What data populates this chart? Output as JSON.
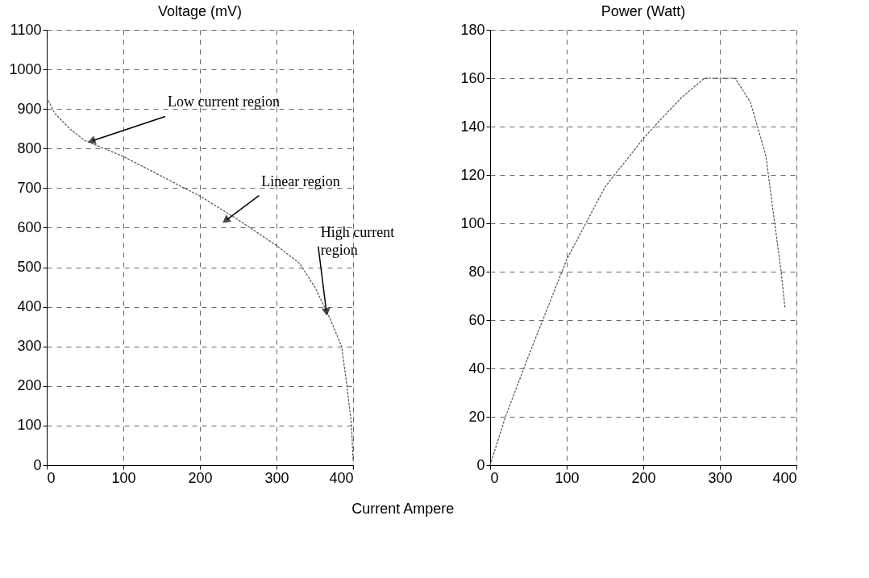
{
  "chart_data": [
    {
      "type": "line",
      "title": "Voltage (mV)",
      "xlabel": "Current Ampere",
      "x": [
        0,
        10,
        30,
        50,
        100,
        150,
        200,
        250,
        300,
        330,
        350,
        370,
        385,
        392,
        398,
        400
      ],
      "series": [
        {
          "color": "#555555",
          "values": [
            930,
            890,
            850,
            820,
            780,
            730,
            680,
            620,
            555,
            510,
            450,
            370,
            300,
            200,
            100,
            10
          ]
        }
      ],
      "xlim": [
        0,
        400
      ],
      "xticks": [
        0,
        100,
        200,
        300,
        400
      ],
      "ylim": [
        0,
        1100
      ],
      "yticks": [
        0,
        100,
        200,
        300,
        400,
        500,
        600,
        700,
        800,
        900,
        1000,
        1100
      ],
      "grid": true,
      "line_style": "dashed",
      "annotations": [
        {
          "text": "Low current region",
          "x": 60,
          "y": 820
        },
        {
          "text": "Linear region",
          "x": 235,
          "y": 620
        },
        {
          "text": "High current region",
          "x": 365,
          "y": 390
        }
      ]
    },
    {
      "type": "line",
      "title": "Power (Watt)",
      "x": [
        0,
        10,
        20,
        50,
        100,
        150,
        200,
        220,
        250,
        280,
        320,
        340,
        360,
        380,
        385
      ],
      "series": [
        {
          "color": "#555555",
          "values": [
            0,
            10,
            20,
            45,
            85,
            115,
            135,
            142,
            152,
            160,
            160,
            150,
            128,
            80,
            65
          ]
        }
      ],
      "xlim": [
        0,
        400
      ],
      "xticks": [
        0,
        100,
        200,
        300,
        400
      ],
      "ylim": [
        0,
        180
      ],
      "yticks": [
        0,
        20,
        40,
        60,
        80,
        100,
        120,
        140,
        160,
        180
      ],
      "grid": true,
      "line_style": "dashed"
    }
  ]
}
